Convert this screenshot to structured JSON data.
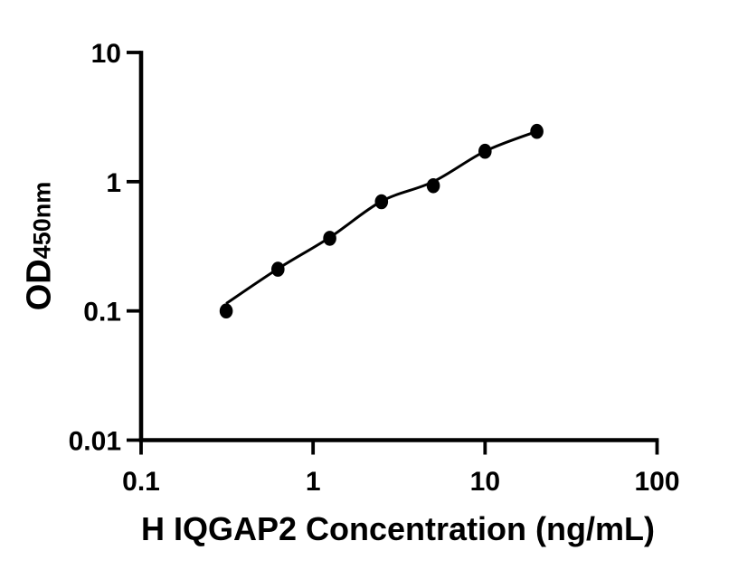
{
  "figure": {
    "background": "#ffffff",
    "ink": "#000000"
  },
  "chart_data": {
    "type": "scatter",
    "title": "",
    "xlabel": "H IQGAP2 Concentration (ng/mL)",
    "ylabel": "OD450nm",
    "ylabel_main": "OD",
    "ylabel_sub": "450nm",
    "x_scale": "log",
    "y_scale": "log",
    "xlim": [
      0.1,
      100
    ],
    "ylim": [
      0.01,
      10
    ],
    "grid": false,
    "legend": "none",
    "x_ticks": [
      {
        "value": 0.1,
        "label": "0.1"
      },
      {
        "value": 1,
        "label": "1"
      },
      {
        "value": 10,
        "label": "10"
      },
      {
        "value": 100,
        "label": "100"
      }
    ],
    "y_ticks": [
      {
        "value": 10,
        "label": "10"
      },
      {
        "value": 1,
        "label": "1"
      },
      {
        "value": 0.1,
        "label": "0.1"
      },
      {
        "value": 0.01,
        "label": "0.01"
      }
    ],
    "points": {
      "marker": "filled-circle",
      "x": [
        0.3125,
        0.625,
        1.25,
        2.5,
        5,
        10,
        20
      ],
      "od": [
        0.1,
        0.21,
        0.365,
        0.7,
        0.93,
        1.72,
        2.45
      ]
    },
    "fit_curve": {
      "x": [
        0.3125,
        0.625,
        1.25,
        2.5,
        5,
        10,
        20
      ],
      "od": [
        0.114,
        0.212,
        0.37,
        0.705,
        1.0,
        1.72,
        2.45
      ]
    },
    "colors": {
      "marker": "#000000",
      "line": "#000000",
      "axis": "#000000",
      "text": "#000000",
      "background": "#ffffff"
    }
  }
}
